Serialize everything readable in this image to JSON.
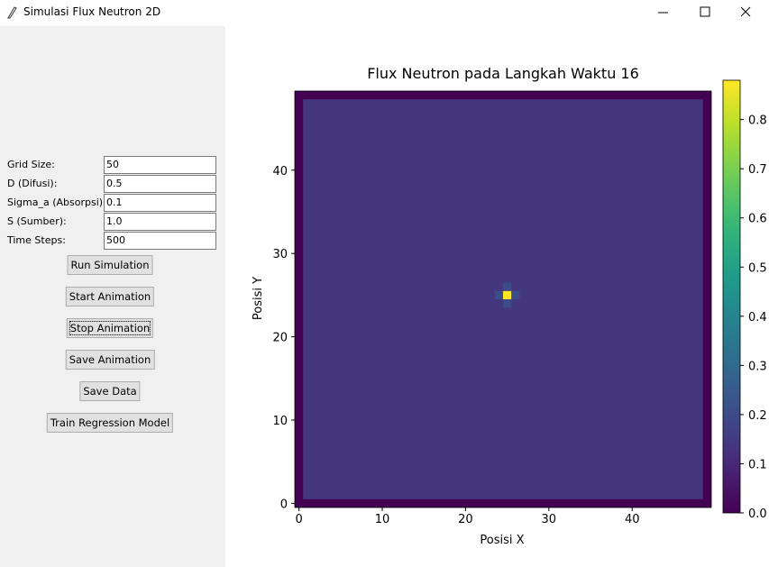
{
  "window": {
    "title": "Simulasi Flux Neutron 2D"
  },
  "form": {
    "fields": [
      {
        "label": "Grid Size:",
        "value": "50"
      },
      {
        "label": "D (Difusi):",
        "value": "0.5"
      },
      {
        "label": "Sigma_a (Absorpsi):",
        "value": "0.1"
      },
      {
        "label": "S (Sumber):",
        "value": "1.0"
      },
      {
        "label": "Time Steps:",
        "value": "500"
      }
    ]
  },
  "buttons": [
    "Run Simulation",
    "Start Animation",
    "Stop Animation",
    "Save Animation",
    "Save Data",
    "Train Regression Model"
  ],
  "plot": {
    "title": "Flux Neutron pada Langkah Waktu 16",
    "xlabel": "Posisi X",
    "ylabel": "Posisi Y",
    "xlim": [
      -0.5,
      49.5
    ],
    "ylim": [
      -0.5,
      49.5
    ],
    "xticks": [
      0,
      10,
      20,
      30,
      40
    ],
    "yticks": [
      0,
      10,
      20,
      30,
      40
    ],
    "colorbar": {
      "lim": [
        0,
        0.88
      ],
      "ticks": [
        {
          "value": 0,
          "label": "0.0"
        },
        0.1,
        0.2,
        0.3,
        0.4,
        0.5,
        0.6,
        0.7,
        0.8
      ]
    },
    "field": {
      "boundary": 0,
      "interior": 0.14,
      "cells": [
        {
          "x": 25,
          "y": 25,
          "value": 0.88
        },
        {
          "x": 24,
          "y": 25,
          "value": 0.2
        },
        {
          "x": 26,
          "y": 25,
          "value": 0.2
        },
        {
          "x": 25,
          "y": 24,
          "value": 0.2
        },
        {
          "x": 25,
          "y": 26,
          "value": 0.2
        }
      ]
    }
  }
}
